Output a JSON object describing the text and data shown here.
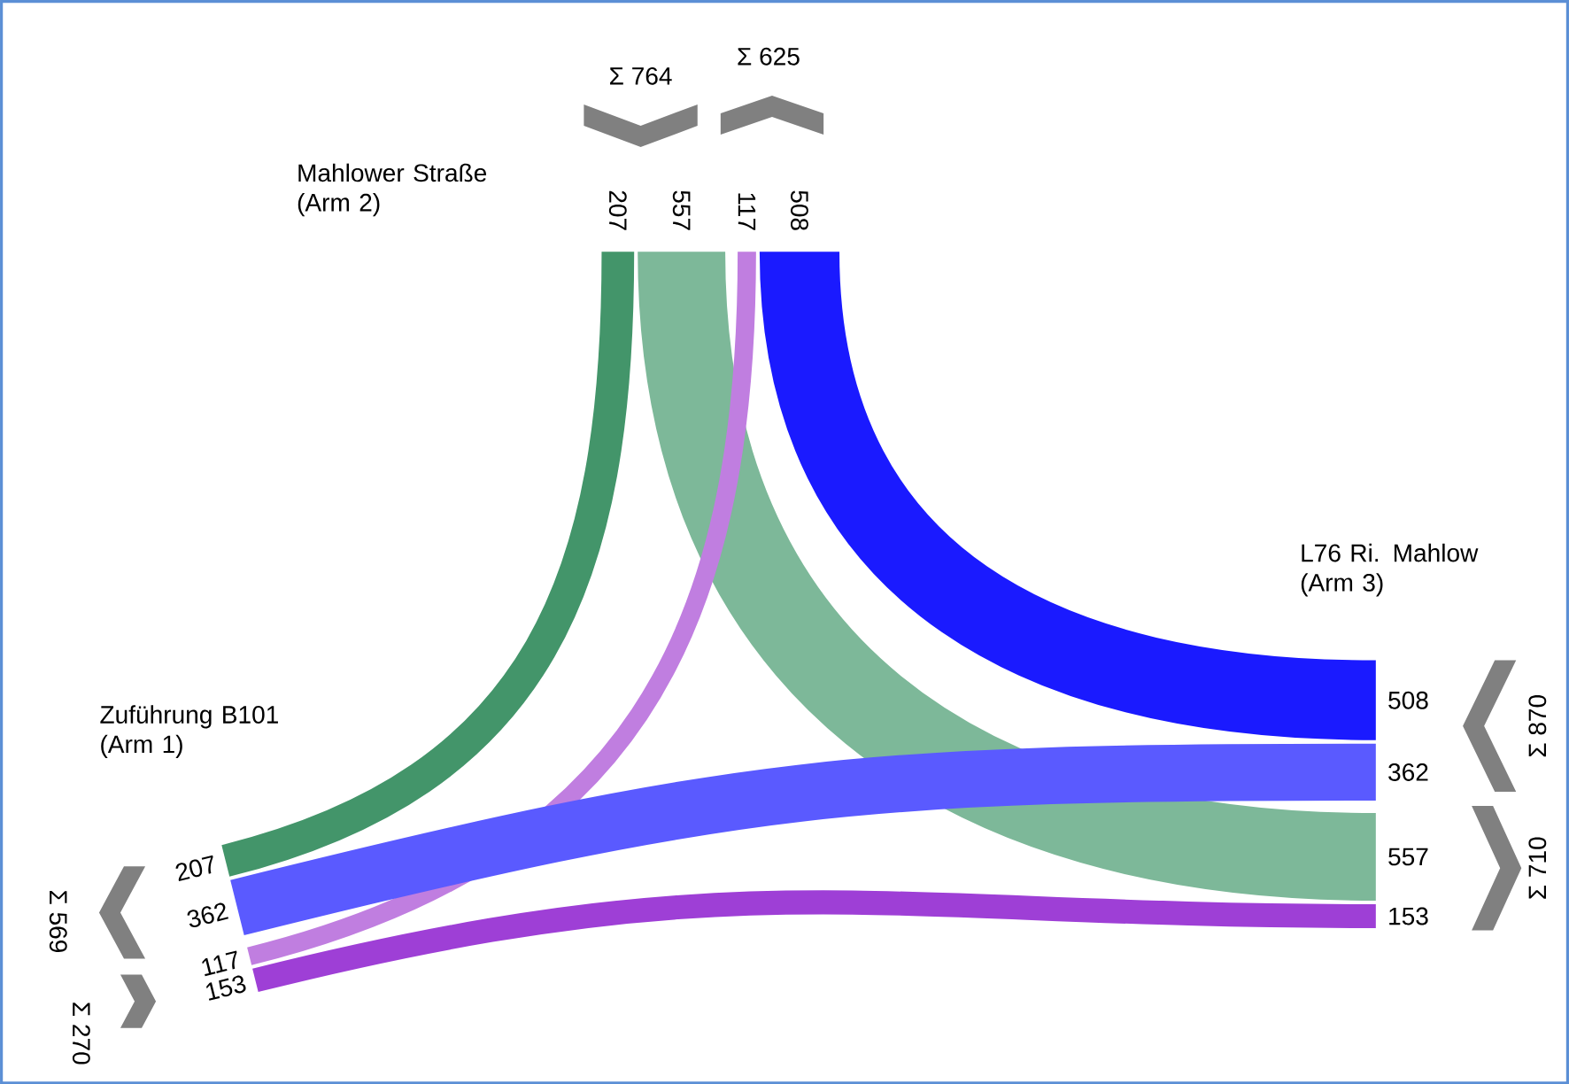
{
  "chart_data": {
    "type": "other",
    "categories": [
      "Zuführung B101 (Arm 1)",
      "Mahlower Straße (Arm 2)",
      "L76 Ri. Mahlow (Arm 3)"
    ],
    "series": [
      {
        "color": "#43956a",
        "values": [
          207,
          207,
          null
        ]
      },
      {
        "color": "#7db899",
        "values": [
          null,
          557,
          557
        ]
      },
      {
        "color": "#c07ee0",
        "values": [
          117,
          117,
          null
        ]
      },
      {
        "color": "#1a1aff",
        "values": [
          null,
          508,
          508
        ]
      },
      {
        "color": "#5a5aff",
        "values": [
          362,
          null,
          362
        ]
      },
      {
        "color": "#9e3fd6",
        "values": [
          153,
          null,
          153
        ]
      }
    ],
    "data_labels": true,
    "annotations": [
      "Σ 764",
      "Σ 625",
      "Σ 870",
      "Σ 710",
      "Σ 569",
      "Σ 270"
    ]
  }
}
